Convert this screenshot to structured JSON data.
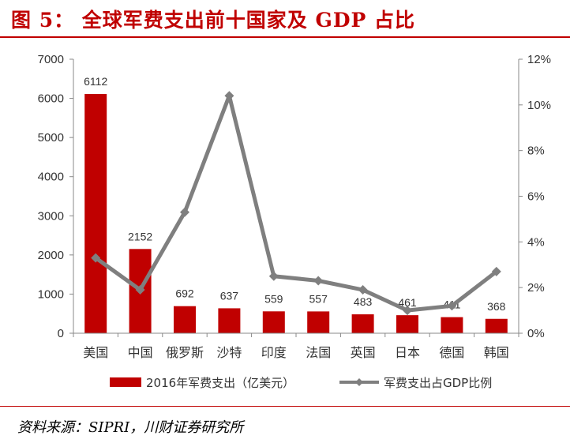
{
  "header": {
    "title": "图 5： 全球军费支出前十国家及 GDP 占比"
  },
  "footer": {
    "source": "资料来源：SIPRI，川财证券研究所"
  },
  "colors": {
    "bar": "#c00000",
    "line": "#7f7f7f",
    "title": "#c00000"
  },
  "chart_data": {
    "type": "bar",
    "title": "",
    "categories": [
      "美国",
      "中国",
      "俄罗斯",
      "沙特",
      "印度",
      "法国",
      "英国",
      "日本",
      "德国",
      "韩国"
    ],
    "series": [
      {
        "name": "2016年军费支出（亿美元）",
        "type": "bar",
        "axis": "left",
        "values": [
          6112,
          2152,
          692,
          637,
          559,
          557,
          483,
          461,
          411,
          368
        ],
        "data_labels": [
          "6112",
          "2152",
          "692",
          "637",
          "559",
          "557",
          "483",
          "461",
          "411",
          "368"
        ]
      },
      {
        "name": "军费支出占GDP比例",
        "type": "line",
        "axis": "right",
        "values": [
          3.3,
          1.9,
          5.3,
          10.4,
          2.5,
          2.3,
          1.9,
          1.0,
          1.2,
          2.7
        ]
      }
    ],
    "y_left": {
      "min": 0,
      "max": 7000,
      "ticks": [
        "0",
        "1000",
        "2000",
        "3000",
        "4000",
        "5000",
        "6000",
        "7000"
      ]
    },
    "y_right": {
      "min": 0,
      "max": 12,
      "ticks": [
        "0%",
        "2%",
        "4%",
        "6%",
        "8%",
        "10%",
        "12%"
      ]
    },
    "grid": false,
    "legend_position": "bottom"
  }
}
